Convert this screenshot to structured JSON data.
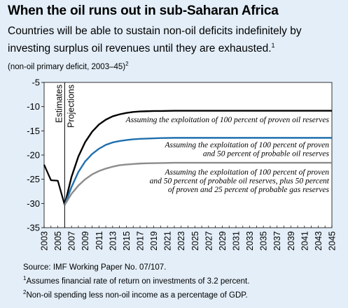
{
  "header": {
    "title": "When the oil runs out in sub-Saharan Africa",
    "subtitle": "Countries will be able to sustain non-oil deficits indefinitely by investing surplus oil revenues until they are exhausted.",
    "subtitle_note": "1",
    "unit_label": "(non-oil primary deficit, 2003–45)",
    "unit_note": "2"
  },
  "footer": {
    "source": "Source: IMF Working Paper No. 07/107.",
    "note1_mark": "1",
    "note1": "Assumes financial rate of return on investments of 3.2 percent.",
    "note2_mark": "2",
    "note2": "Non-oil spending less non-oil income as a percentage of GDP."
  },
  "chart_data": {
    "type": "line",
    "xlim": [
      2003,
      2045
    ],
    "ylim": [
      -35,
      -5
    ],
    "y_ticks": [
      -5,
      -10,
      -15,
      -20,
      -25,
      -30,
      -35
    ],
    "y_tick_labels": [
      "-5",
      "-10",
      "-15",
      "-20",
      "-25",
      "-30",
      "-35"
    ],
    "x_ticks": [
      2003,
      2005,
      2007,
      2009,
      2011,
      2013,
      2015,
      2017,
      2019,
      2021,
      2023,
      2025,
      2027,
      2029,
      2031,
      2033,
      2035,
      2037,
      2039,
      2041,
      2043,
      2045
    ],
    "x_tick_labels": [
      "2003",
      "2005",
      "2007",
      "2009",
      "2011",
      "2013",
      "2015",
      "2017",
      "2019",
      "2021",
      "2023",
      "2025",
      "2027",
      "2029",
      "2031",
      "2033",
      "2035",
      "2037",
      "2039",
      "2041",
      "2043",
      "2045"
    ],
    "grid": false,
    "divider": {
      "x": 2006,
      "left_label": "Estimates",
      "right_label": "Projections"
    },
    "historical": {
      "color": "#000000",
      "x": [
        2003,
        2004,
        2005,
        2006
      ],
      "y": [
        -22,
        -25.2,
        -25.3,
        -30.3
      ]
    },
    "series": [
      {
        "annotation": [
          "Assuming the exploitation of 100 percent of proven oil reserves"
        ],
        "color": "#000000",
        "x": [
          2006,
          2007,
          2008,
          2009,
          2010,
          2011,
          2012,
          2013,
          2014,
          2015,
          2016,
          2017,
          2018,
          2019,
          2020,
          2022,
          2025,
          2030,
          2035,
          2040,
          2045
        ],
        "y": [
          -30.3,
          -24.5,
          -20.3,
          -17.3,
          -15.2,
          -13.7,
          -12.7,
          -12.0,
          -11.6,
          -11.3,
          -11.1,
          -11.0,
          -10.95,
          -10.9,
          -10.9,
          -10.85,
          -10.85,
          -10.85,
          -10.85,
          -10.85,
          -10.85
        ]
      },
      {
        "annotation": [
          "Assuming the exploitation of 100 percent of proven",
          "and 50 percent of probable oil reserves"
        ],
        "color": "#1f6fae",
        "x": [
          2006,
          2007,
          2008,
          2009,
          2010,
          2011,
          2012,
          2013,
          2014,
          2015,
          2016,
          2017,
          2018,
          2020,
          2022,
          2025,
          2030,
          2035,
          2040,
          2045
        ],
        "y": [
          -30.3,
          -26.6,
          -23.5,
          -21.3,
          -19.8,
          -18.7,
          -17.9,
          -17.4,
          -17.1,
          -16.9,
          -16.75,
          -16.65,
          -16.6,
          -16.5,
          -16.45,
          -16.45,
          -16.45,
          -16.45,
          -16.45,
          -16.45
        ]
      },
      {
        "annotation": [
          "Assuming the exploitation of 100 percent of proven",
          "and 50 percent of probable oil reserves, plus 50 percent",
          "of proven and 25 percent of probable gas reserves"
        ],
        "color": "#8c8c8c",
        "x": [
          2006,
          2007,
          2008,
          2009,
          2010,
          2011,
          2012,
          2013,
          2014,
          2015,
          2016,
          2017,
          2018,
          2020,
          2022,
          2025,
          2030,
          2035,
          2040,
          2045
        ],
        "y": [
          -30.3,
          -28.0,
          -26.3,
          -25.0,
          -24.0,
          -23.3,
          -22.8,
          -22.4,
          -22.1,
          -21.95,
          -21.85,
          -21.75,
          -21.7,
          -21.65,
          -21.6,
          -21.6,
          -21.6,
          -21.6,
          -21.6,
          -21.6
        ]
      }
    ]
  }
}
